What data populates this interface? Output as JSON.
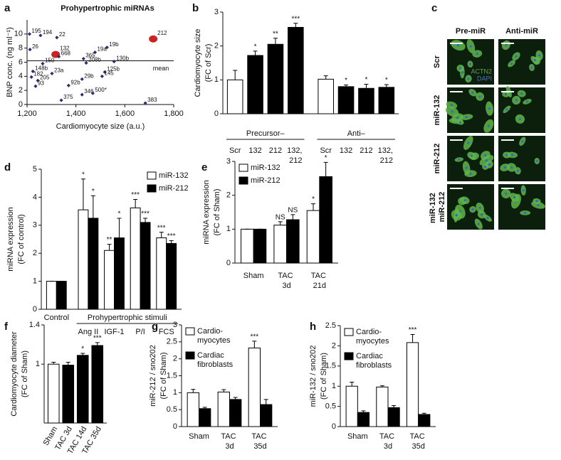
{
  "chart_data": [
    {
      "panel": "a",
      "type": "scatter",
      "title": "Prohypertrophic miRNAs",
      "x_label": "Cardiomyocyte size (a.u.)",
      "y_label": [
        "BNP conc. (ng ml⁻¹)"
      ],
      "xlim": [
        1200,
        1800
      ],
      "xticks": [
        {
          "value": 1200,
          "label": "1,200"
        },
        {
          "value": 1400,
          "label": "1,400"
        },
        {
          "value": 1600,
          "label": "1,600"
        },
        {
          "value": 1800,
          "label": "1,800"
        }
      ],
      "ylim": [
        0,
        12
      ],
      "yticks": [
        0,
        2,
        4,
        6,
        8,
        10
      ],
      "x": [
        1210,
        1255,
        1322,
        1716,
        1212,
        1317,
        1330,
        1527,
        1478,
        1431,
        1556,
        1442,
        1264,
        1224,
        1218,
        1302,
        1518,
        1244,
        1507,
        1235,
        1425,
        1370,
        1425,
        1469,
        1340,
        1684
      ],
      "values": [
        10.0,
        9.8,
        9.5,
        9.3,
        7.8,
        7.1,
        6.8,
        8.1,
        7.4,
        6.5,
        6.1,
        5.9,
        5.8,
        4.7,
        3.9,
        4.4,
        4.6,
        3.4,
        4.0,
        2.6,
        3.6,
        2.7,
        1.4,
        1.6,
        0.6,
        0.2
      ],
      "point_labels": [
        "195",
        "194",
        "22",
        "212",
        "26",
        "132",
        "668",
        "19b",
        "19a",
        "365",
        "130b",
        "208b",
        "150",
        "148b",
        "182",
        "23a",
        "125b",
        "205",
        "145",
        "93",
        "29b",
        "92b",
        "346",
        "500*",
        "375",
        "383"
      ],
      "colors": [
        "#2b2d6e",
        "#2b2d6e",
        "#2b2d6e",
        "#cc2222",
        "#2b2d6e",
        "#cc2222",
        "#2b2d6e",
        "#2b2d6e",
        "#2b2d6e",
        "#2b2d6e",
        "#2b2d6e",
        "#2b2d6e",
        "#2b2d6e",
        "#2b2d6e",
        "#2b2d6e",
        "#2b2d6e",
        "#2b2d6e",
        "#2b2d6e",
        "#2b2d6e",
        "#2b2d6e",
        "#2b2d6e",
        "#2b2d6e",
        "#2b2d6e",
        "#2b2d6e",
        "#2b2d6e",
        "#2b2d6e"
      ],
      "mean_line": 6.2,
      "mean_label": "mean"
    },
    {
      "panel": "b",
      "type": "bar",
      "y_label": [
        "Cardiomyocyte size",
        "(FC of Scr)"
      ],
      "ylim": [
        0,
        3
      ],
      "yticks": [
        0,
        1,
        2,
        3
      ],
      "groups": [
        {
          "label": "Precursor–",
          "categories": [
            "Scr",
            "132",
            "212",
            "132, 212"
          ]
        },
        {
          "label": "Anti–",
          "categories": [
            "Scr",
            "132",
            "212",
            "132, 212"
          ]
        }
      ],
      "series": [
        {
          "colors": [
            "#ffffff",
            "#000000",
            "#000000",
            "#000000",
            "#ffffff",
            "#000000",
            "#000000",
            "#000000"
          ],
          "values": [
            1.0,
            1.72,
            2.05,
            2.55,
            1.02,
            0.8,
            0.75,
            0.78
          ],
          "errors": [
            0.28,
            0.13,
            0.18,
            0.12,
            0.1,
            0.05,
            0.12,
            0.08
          ],
          "significance": [
            null,
            "*",
            "**",
            "***",
            null,
            "*",
            "*",
            "*"
          ]
        }
      ]
    },
    {
      "panel": "d",
      "type": "bar",
      "y_label": [
        "miRNA expression",
        "(FC of control)"
      ],
      "ylim": [
        0,
        5
      ],
      "yticks": [
        0,
        1,
        2,
        3,
        4,
        5
      ],
      "groups": [
        {
          "label": "Control",
          "categories": [
            null
          ]
        },
        {
          "label": "Prohypertrophic stimuli",
          "categories": [
            "Ang II",
            "IGF-1",
            "P/I",
            "FCS"
          ]
        }
      ],
      "legend": "upper right",
      "series": [
        {
          "name": "miR-132",
          "color": "#ffffff",
          "values": [
            1,
            3.55,
            2.1,
            3.62,
            2.55
          ],
          "errors": [
            0,
            1.1,
            0.22,
            0.3,
            0.2
          ],
          "significance": [
            null,
            "*",
            "**",
            "***",
            "***"
          ]
        },
        {
          "name": "miR-212",
          "color": "#000000",
          "values": [
            1,
            3.25,
            2.55,
            3.1,
            2.35
          ],
          "errors": [
            0,
            0.8,
            0.7,
            0.15,
            0.1
          ],
          "significance": [
            null,
            "*",
            "*",
            "***",
            "***"
          ]
        }
      ]
    },
    {
      "panel": "e",
      "type": "bar",
      "y_label": [
        "miRNA expression",
        "(FC of Sham)"
      ],
      "ylim": [
        0,
        3
      ],
      "yticks": [
        0,
        1,
        2,
        3
      ],
      "categories": [
        "Sham",
        "TAC 3d",
        "TAC 21d"
      ],
      "legend": "upper left",
      "series": [
        {
          "name": "miR-132",
          "color": "#ffffff",
          "values": [
            1.0,
            1.12,
            1.55
          ],
          "errors": [
            0,
            0.1,
            0.2
          ],
          "significance": [
            null,
            "NS",
            "*"
          ]
        },
        {
          "name": "miR-212",
          "color": "#000000",
          "values": [
            1.0,
            1.28,
            2.55
          ],
          "errors": [
            0,
            0.15,
            0.42
          ],
          "significance": [
            null,
            "NS",
            "*"
          ]
        }
      ]
    },
    {
      "panel": "f",
      "type": "bar",
      "y_label": [
        "Cardiomyocyte diameter",
        "(FC of Sham)"
      ],
      "ylim": [
        0.4,
        1.4
      ],
      "yticks": [
        1,
        1.4
      ],
      "categories": [
        "Sham",
        "TAC 3d",
        "TAC 14d",
        "TAC 35d"
      ],
      "series": [
        {
          "colors": [
            "#ffffff",
            "#000000",
            "#000000",
            "#000000"
          ],
          "values": [
            1.0,
            0.99,
            1.09,
            1.19
          ],
          "errors": [
            0.02,
            0.03,
            0.02,
            0.03
          ],
          "significance": [
            null,
            null,
            "*",
            "***"
          ]
        }
      ]
    },
    {
      "panel": "g",
      "type": "bar",
      "y_label": [
        "miR-212 / sno202",
        "(FC of Sham)"
      ],
      "ylim": [
        0,
        3
      ],
      "yticks": [
        0,
        0.5,
        1,
        1.5,
        2,
        2.5,
        3
      ],
      "categories": [
        "Sham",
        "TAC 3d",
        "TAC 35d"
      ],
      "legend": "upper left",
      "series": [
        {
          "name": [
            "Cardio-",
            "myocytes"
          ],
          "color": "#ffffff",
          "values": [
            1.0,
            1.02,
            2.32
          ],
          "errors": [
            0.1,
            0.07,
            0.2
          ],
          "significance": [
            null,
            null,
            "***"
          ]
        },
        {
          "name": [
            "Cardiac",
            "fibroblasts"
          ],
          "color": "#000000",
          "values": [
            0.53,
            0.8,
            0.65
          ],
          "errors": [
            0.04,
            0.06,
            0.15
          ],
          "significance": [
            null,
            null,
            null
          ]
        }
      ]
    },
    {
      "panel": "h",
      "type": "bar",
      "y_label": [
        "miR-132 / sno202",
        "(FC of Sham)"
      ],
      "ylim": [
        0,
        2.5
      ],
      "yticks": [
        0,
        0.5,
        1,
        1.5,
        2,
        2.5
      ],
      "categories": [
        "Sham",
        "TAC 3d",
        "TAC 35d"
      ],
      "legend": "upper left",
      "series": [
        {
          "name": [
            "Cardio-",
            "myocytes"
          ],
          "color": "#ffffff",
          "values": [
            1.0,
            0.98,
            2.08
          ],
          "errors": [
            0.1,
            0.03,
            0.2
          ],
          "significance": [
            null,
            null,
            "***"
          ]
        },
        {
          "name": [
            "Cardiac",
            "fibroblasts"
          ],
          "color": "#000000",
          "values": [
            0.35,
            0.47,
            0.3
          ],
          "errors": [
            0.04,
            0.05,
            0.03
          ],
          "significance": [
            null,
            null,
            null
          ]
        }
      ]
    }
  ],
  "image_panel": {
    "panel": "c",
    "columns": [
      "Pre-miR",
      "Anti-miR"
    ],
    "rows": [
      "Scr",
      "miR-132",
      "miR-212",
      "miR-132 miR-212"
    ],
    "stain_labels": [
      "ACTN2",
      "DAPI"
    ]
  }
}
